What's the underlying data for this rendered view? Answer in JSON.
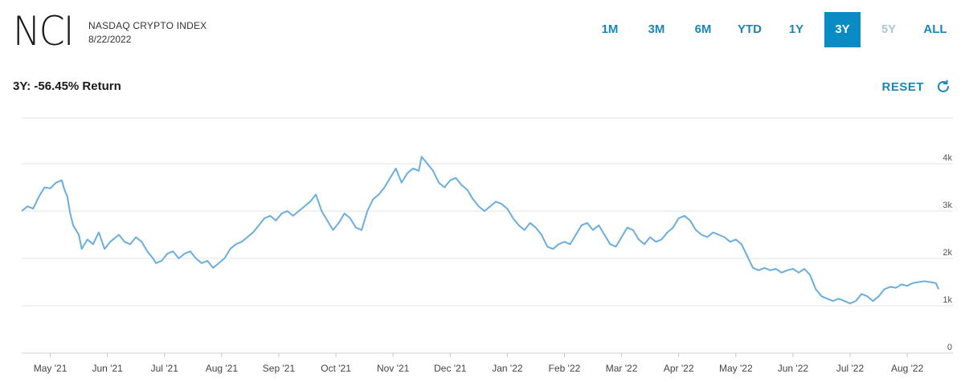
{
  "header": {
    "logo": "NCI",
    "index_name": "NASDAQ CRYPTO INDEX",
    "date": "8/22/2022"
  },
  "ranges": [
    {
      "label": "1M",
      "state": "normal"
    },
    {
      "label": "3M",
      "state": "normal"
    },
    {
      "label": "6M",
      "state": "normal"
    },
    {
      "label": "YTD",
      "state": "normal"
    },
    {
      "label": "1Y",
      "state": "normal"
    },
    {
      "label": "3Y",
      "state": "active"
    },
    {
      "label": "5Y",
      "state": "disabled"
    },
    {
      "label": "ALL",
      "state": "normal"
    }
  ],
  "return_text": "3Y: -56.45% Return",
  "reset": {
    "label": "RESET",
    "icon": "refresh-icon"
  },
  "colors": {
    "accent": "#0b8bc4",
    "line": "#6aaee0",
    "grid": "#e3e3e3"
  },
  "chart_data": {
    "type": "line",
    "y_ticks": [
      {
        "value": 0,
        "label": "0"
      },
      {
        "value": 1000,
        "label": "1k"
      },
      {
        "value": 2000,
        "label": "2k"
      },
      {
        "value": 3000,
        "label": "3k"
      },
      {
        "value": 4000,
        "label": "4k"
      }
    ],
    "ylim": [
      0,
      5000
    ],
    "grid": true,
    "x_ticks": [
      "May '21",
      "Jun '21",
      "Jul '21",
      "Aug '21",
      "Sep '21",
      "Oct '21",
      "Nov '21",
      "Dec '21",
      "Jan '22",
      "Feb '22",
      "Mar '22",
      "Apr '22",
      "May '22",
      "Jun '22",
      "Jul '22",
      "Aug '22"
    ],
    "x_tick_positions": [
      0.5,
      1.5,
      2.5,
      3.5,
      4.5,
      5.5,
      6.5,
      7.5,
      8.5,
      9.5,
      10.5,
      11.5,
      12.5,
      13.5,
      14.5,
      15.5
    ],
    "xlim": [
      0,
      16.3
    ],
    "series": [
      {
        "values": [
          [
            0.0,
            3000
          ],
          [
            0.1,
            3100
          ],
          [
            0.2,
            3050
          ],
          [
            0.3,
            3300
          ],
          [
            0.4,
            3500
          ],
          [
            0.5,
            3480
          ],
          [
            0.6,
            3600
          ],
          [
            0.7,
            3650
          ],
          [
            0.75,
            3450
          ],
          [
            0.8,
            3300
          ],
          [
            0.85,
            2950
          ],
          [
            0.9,
            2700
          ],
          [
            1.0,
            2500
          ],
          [
            1.05,
            2200
          ],
          [
            1.15,
            2400
          ],
          [
            1.25,
            2300
          ],
          [
            1.35,
            2550
          ],
          [
            1.45,
            2200
          ],
          [
            1.55,
            2350
          ],
          [
            1.7,
            2500
          ],
          [
            1.8,
            2350
          ],
          [
            1.9,
            2300
          ],
          [
            2.0,
            2450
          ],
          [
            2.1,
            2350
          ],
          [
            2.2,
            2150
          ],
          [
            2.3,
            2000
          ],
          [
            2.35,
            1900
          ],
          [
            2.45,
            1950
          ],
          [
            2.55,
            2100
          ],
          [
            2.65,
            2150
          ],
          [
            2.75,
            2000
          ],
          [
            2.85,
            2100
          ],
          [
            2.95,
            2150
          ],
          [
            3.05,
            2000
          ],
          [
            3.15,
            1900
          ],
          [
            3.25,
            1950
          ],
          [
            3.35,
            1800
          ],
          [
            3.45,
            1900
          ],
          [
            3.55,
            2000
          ],
          [
            3.65,
            2200
          ],
          [
            3.75,
            2300
          ],
          [
            3.85,
            2350
          ],
          [
            3.95,
            2450
          ],
          [
            4.05,
            2550
          ],
          [
            4.15,
            2700
          ],
          [
            4.25,
            2850
          ],
          [
            4.35,
            2900
          ],
          [
            4.45,
            2800
          ],
          [
            4.55,
            2950
          ],
          [
            4.65,
            3000
          ],
          [
            4.75,
            2900
          ],
          [
            4.85,
            3000
          ],
          [
            4.95,
            3100
          ],
          [
            5.05,
            3200
          ],
          [
            5.15,
            3350
          ],
          [
            5.25,
            3000
          ],
          [
            5.35,
            2800
          ],
          [
            5.45,
            2600
          ],
          [
            5.55,
            2750
          ],
          [
            5.65,
            2950
          ],
          [
            5.75,
            2850
          ],
          [
            5.85,
            2650
          ],
          [
            5.95,
            2600
          ],
          [
            6.05,
            3000
          ],
          [
            6.15,
            3250
          ],
          [
            6.25,
            3350
          ],
          [
            6.35,
            3500
          ],
          [
            6.45,
            3700
          ],
          [
            6.55,
            3900
          ],
          [
            6.65,
            3600
          ],
          [
            6.75,
            3800
          ],
          [
            6.85,
            3900
          ],
          [
            6.95,
            3850
          ],
          [
            7.0,
            4150
          ],
          [
            7.1,
            4000
          ],
          [
            7.2,
            3850
          ],
          [
            7.3,
            3600
          ],
          [
            7.4,
            3500
          ],
          [
            7.5,
            3650
          ],
          [
            7.6,
            3700
          ],
          [
            7.7,
            3550
          ],
          [
            7.8,
            3450
          ],
          [
            7.9,
            3250
          ],
          [
            8.0,
            3100
          ],
          [
            8.1,
            3000
          ],
          [
            8.2,
            3100
          ],
          [
            8.3,
            3200
          ],
          [
            8.4,
            3150
          ],
          [
            8.5,
            3050
          ],
          [
            8.6,
            2850
          ],
          [
            8.7,
            2700
          ],
          [
            8.8,
            2600
          ],
          [
            8.9,
            2750
          ],
          [
            9.0,
            2650
          ],
          [
            9.1,
            2500
          ],
          [
            9.2,
            2250
          ],
          [
            9.3,
            2200
          ],
          [
            9.4,
            2300
          ],
          [
            9.5,
            2350
          ],
          [
            9.6,
            2300
          ],
          [
            9.7,
            2500
          ],
          [
            9.8,
            2700
          ],
          [
            9.9,
            2750
          ],
          [
            10.0,
            2600
          ],
          [
            10.1,
            2700
          ],
          [
            10.2,
            2500
          ],
          [
            10.3,
            2300
          ],
          [
            10.4,
            2250
          ],
          [
            10.5,
            2450
          ],
          [
            10.6,
            2650
          ],
          [
            10.7,
            2600
          ],
          [
            10.8,
            2400
          ],
          [
            10.9,
            2300
          ],
          [
            11.0,
            2450
          ],
          [
            11.1,
            2350
          ],
          [
            11.2,
            2400
          ],
          [
            11.3,
            2550
          ],
          [
            11.4,
            2650
          ],
          [
            11.5,
            2850
          ],
          [
            11.6,
            2900
          ],
          [
            11.7,
            2800
          ],
          [
            11.8,
            2600
          ],
          [
            11.9,
            2500
          ],
          [
            12.0,
            2450
          ],
          [
            12.1,
            2550
          ],
          [
            12.2,
            2500
          ],
          [
            12.3,
            2450
          ],
          [
            12.4,
            2350
          ],
          [
            12.5,
            2400
          ],
          [
            12.6,
            2300
          ],
          [
            12.7,
            2050
          ],
          [
            12.8,
            1800
          ],
          [
            12.9,
            1750
          ],
          [
            13.0,
            1800
          ],
          [
            13.1,
            1750
          ],
          [
            13.2,
            1780
          ],
          [
            13.3,
            1700
          ],
          [
            13.4,
            1750
          ],
          [
            13.5,
            1780
          ],
          [
            13.6,
            1700
          ],
          [
            13.7,
            1780
          ],
          [
            13.8,
            1650
          ],
          [
            13.9,
            1350
          ],
          [
            14.0,
            1200
          ],
          [
            14.1,
            1150
          ],
          [
            14.2,
            1100
          ],
          [
            14.3,
            1150
          ],
          [
            14.4,
            1100
          ],
          [
            14.5,
            1050
          ],
          [
            14.6,
            1100
          ],
          [
            14.7,
            1250
          ],
          [
            14.8,
            1200
          ],
          [
            14.9,
            1100
          ],
          [
            15.0,
            1200
          ],
          [
            15.1,
            1350
          ],
          [
            15.2,
            1400
          ],
          [
            15.3,
            1380
          ],
          [
            15.4,
            1450
          ],
          [
            15.5,
            1420
          ],
          [
            15.6,
            1480
          ],
          [
            15.7,
            1500
          ],
          [
            15.8,
            1520
          ],
          [
            15.9,
            1500
          ],
          [
            16.0,
            1480
          ],
          [
            16.05,
            1350
          ]
        ]
      }
    ]
  }
}
